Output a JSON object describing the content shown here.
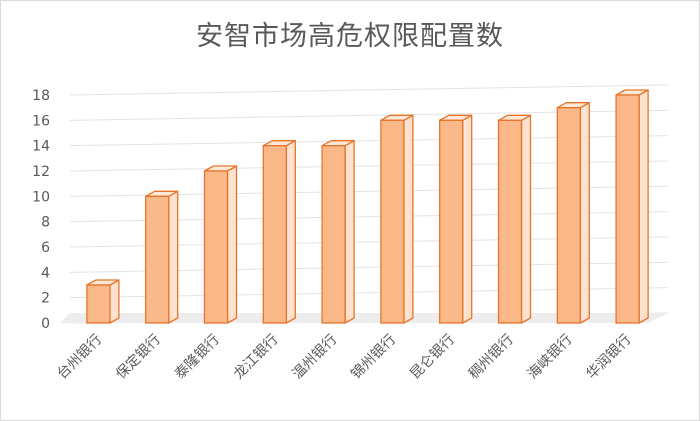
{
  "chart_data": {
    "type": "bar",
    "title": "安智市场高危权限配置数",
    "categories": [
      "台州银行",
      "保定银行",
      "泰隆银行",
      "龙江银行",
      "温州银行",
      "锦州银行",
      "昆仑银行",
      "稠州银行",
      "海峡银行",
      "华润银行"
    ],
    "values": [
      3,
      10,
      12,
      14,
      14,
      16,
      16,
      16,
      17,
      18
    ],
    "ylim": [
      0,
      18
    ],
    "yticks": [
      "0",
      "2",
      "4",
      "6",
      "8",
      "10",
      "12",
      "14",
      "16",
      "18"
    ],
    "grid": true,
    "style": "3d-column",
    "colors": {
      "bar_front": "#fbb98a",
      "bar_side": "#fde3cf",
      "bar_top": "#fee9d9",
      "bar_stroke": "#e8742a",
      "grid": "#e3e3e3",
      "floor": "#ededed",
      "text": "#595959"
    }
  }
}
